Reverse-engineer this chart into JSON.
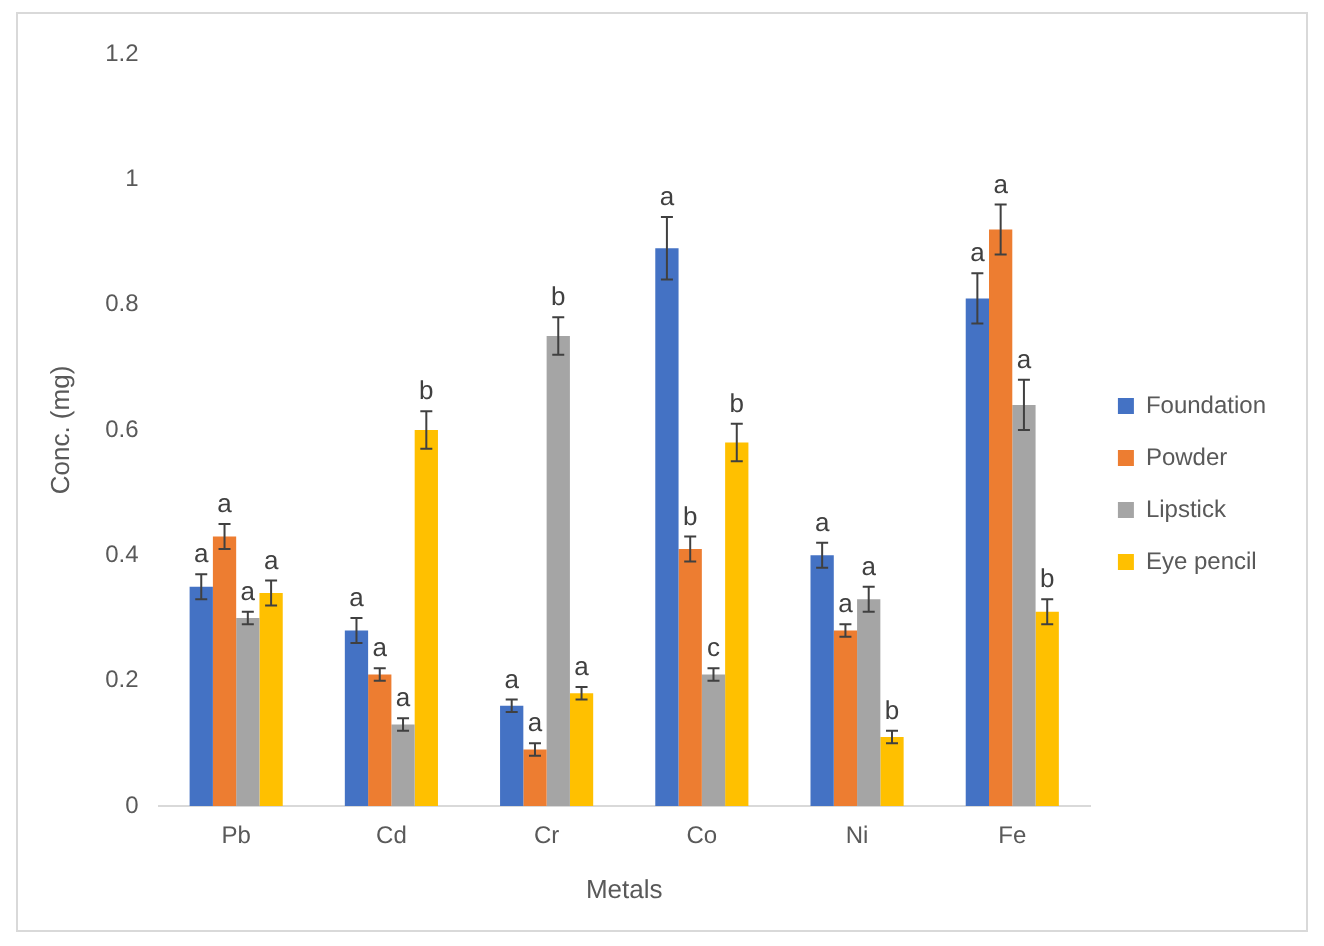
{
  "chart_data": {
    "type": "bar",
    "xlabel": "Metals",
    "ylabel": "Conc. (mg)",
    "categories": [
      "Pb",
      "Cd",
      "Cr",
      "Co",
      "Ni",
      "Fe"
    ],
    "series": [
      {
        "name": "Foundation",
        "color": "#4472c4",
        "values": [
          0.35,
          0.28,
          0.16,
          0.89,
          0.4,
          0.81
        ],
        "errors": [
          0.02,
          0.02,
          0.01,
          0.05,
          0.02,
          0.04
        ],
        "value_labels": [
          "a",
          "a",
          "a",
          "a",
          "a",
          "a"
        ]
      },
      {
        "name": "Powder",
        "color": "#ed7d31",
        "values": [
          0.43,
          0.21,
          0.09,
          0.41,
          0.28,
          0.92
        ],
        "errors": [
          0.02,
          0.01,
          0.01,
          0.02,
          0.01,
          0.04
        ],
        "value_labels": [
          "a",
          "a",
          "a",
          "b",
          "a",
          "a"
        ]
      },
      {
        "name": "Lipstick",
        "color": "#a5a5a5",
        "values": [
          0.3,
          0.13,
          0.75,
          0.21,
          0.33,
          0.64
        ],
        "errors": [
          0.01,
          0.01,
          0.03,
          0.01,
          0.02,
          0.04
        ],
        "value_labels": [
          "a",
          "a",
          "b",
          "c",
          "a",
          "a"
        ]
      },
      {
        "name": "Eye pencil",
        "color": "#ffc000",
        "values": [
          0.34,
          0.6,
          0.18,
          0.58,
          0.11,
          0.31
        ],
        "errors": [
          0.02,
          0.03,
          0.01,
          0.03,
          0.01,
          0.02
        ],
        "value_labels": [
          "a",
          "b",
          "a",
          "b",
          "b",
          "b"
        ]
      }
    ],
    "ylim": [
      0,
      1.2
    ],
    "yticks": [
      0,
      0.2,
      0.4,
      0.6,
      0.8,
      1,
      1.2
    ],
    "grid": false,
    "legend": "right"
  }
}
